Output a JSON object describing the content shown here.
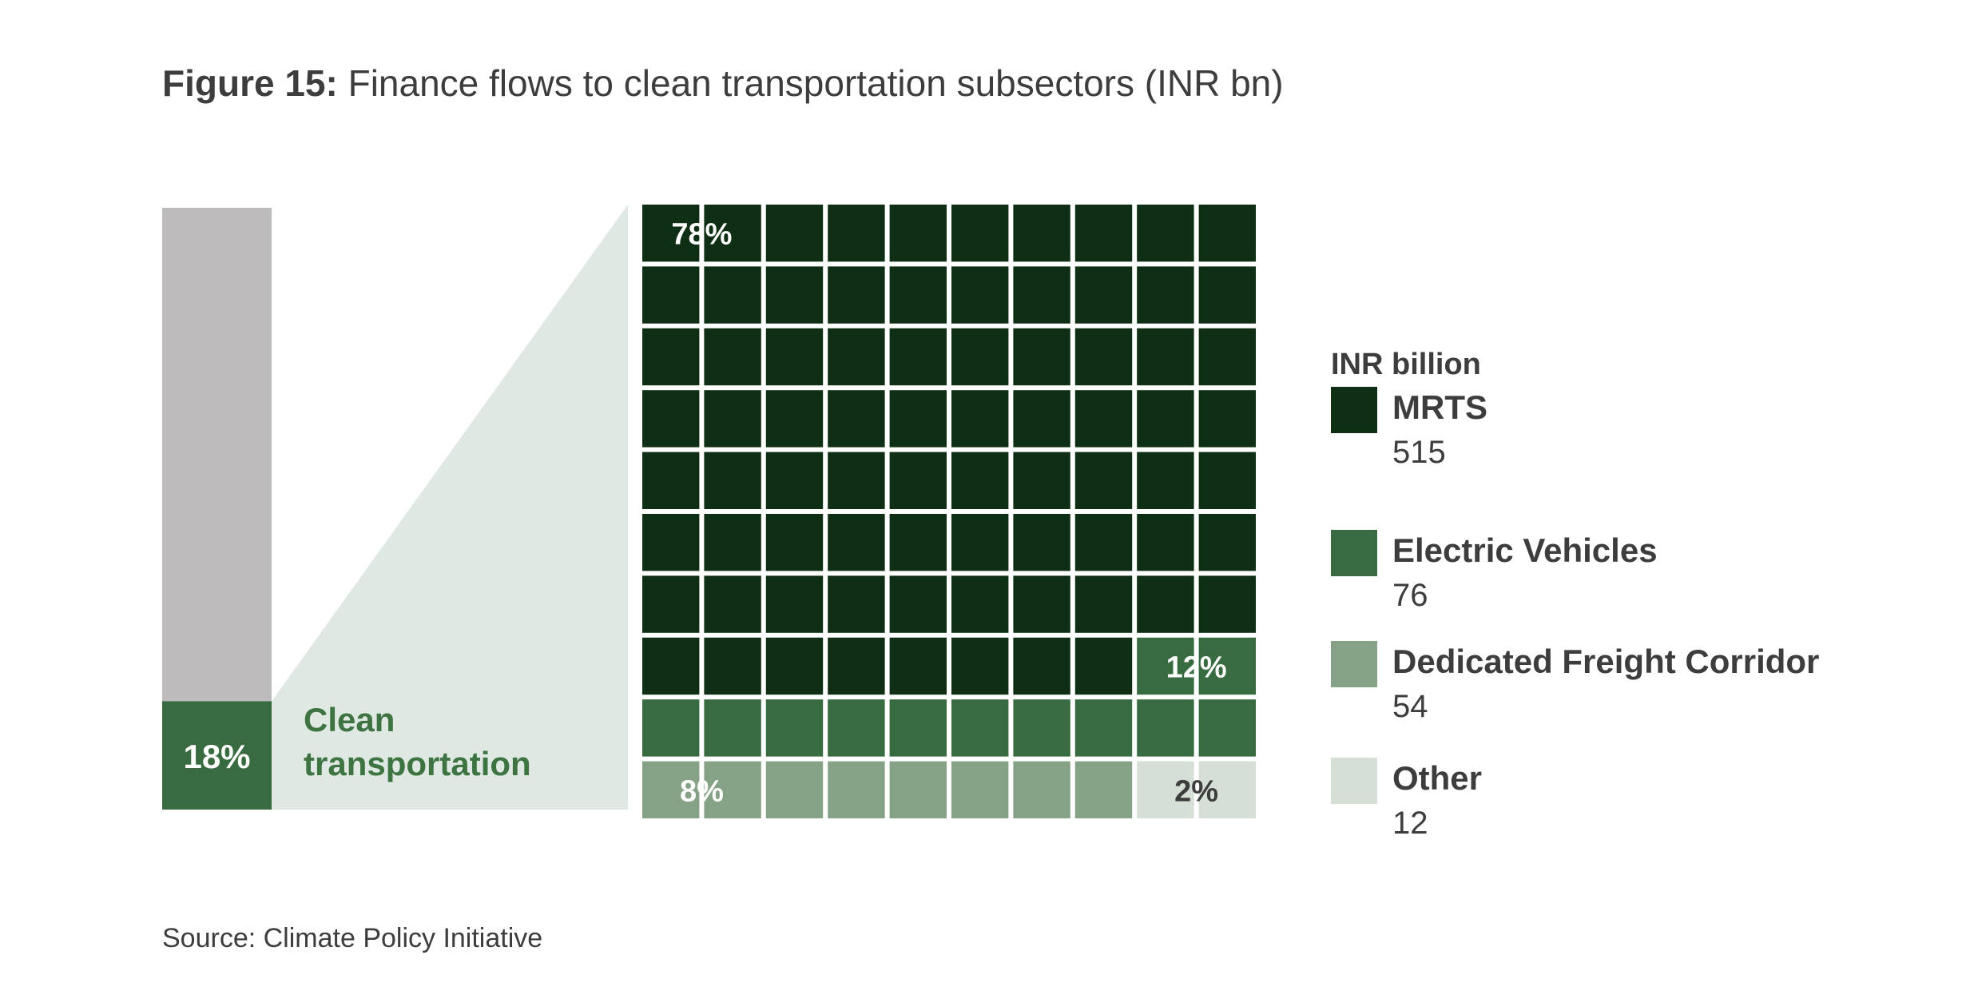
{
  "figure": {
    "title_label": "Figure 15:",
    "title_text": " Finance flows to clean transportation subsectors (INR bn)",
    "source": "Source: Climate Policy Initiative"
  },
  "colors": {
    "text": "#3d3d3d",
    "bar_gray": "#bdbbbc",
    "mrts": "#0e2f14",
    "ev": "#386b40",
    "dfc": "#86a286",
    "other": "#d5dfd6",
    "wedge": "#e0e8e3",
    "clean_label": "#3d7441"
  },
  "chart_data": [
    {
      "type": "bar",
      "values": [
        18,
        82
      ],
      "value_label": "18%",
      "highlight_label_line1": "Clean",
      "highlight_label_line2": "transportation"
    },
    {
      "type": "waffle",
      "grid": {
        "rows": 10,
        "cols": 10
      },
      "legend_title": "INR billion",
      "categories": [
        {
          "name": "MRTS",
          "value": 515,
          "value_text": "515",
          "cells": 78,
          "percent_label": "78%"
        },
        {
          "name": "Electric Vehicles",
          "value": 76,
          "value_text": "76",
          "cells": 12,
          "percent_label": "12%"
        },
        {
          "name": "Dedicated Freight Corridor",
          "value": 54,
          "value_text": "54",
          "cells": 8,
          "percent_label": "8%"
        },
        {
          "name": "Other",
          "value": 12,
          "value_text": "12",
          "cells": 2,
          "percent_label": "2%"
        }
      ]
    }
  ]
}
